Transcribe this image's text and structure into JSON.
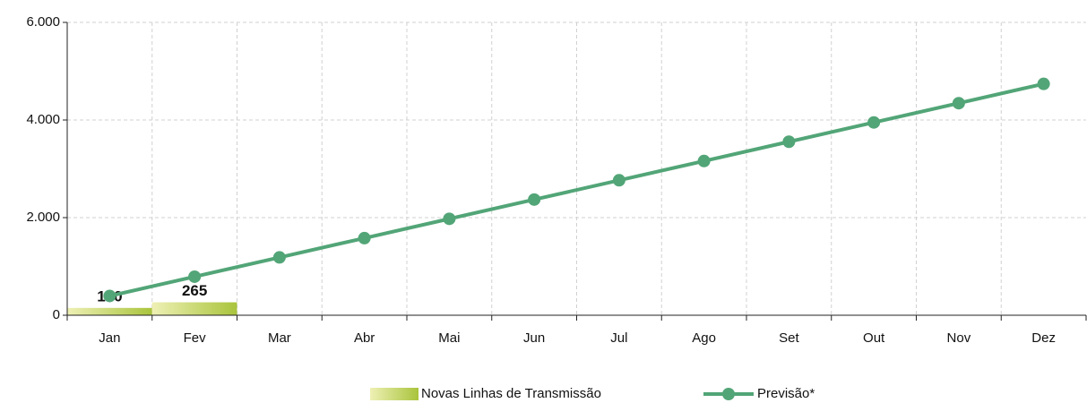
{
  "chart_data": {
    "type": "bar-line",
    "categories": [
      "Jan",
      "Fev",
      "Mar",
      "Abr",
      "Mai",
      "Jun",
      "Jul",
      "Ago",
      "Set",
      "Out",
      "Nov",
      "Dez"
    ],
    "series": [
      {
        "name": "Novas Linhas de Transmissão",
        "type": "bar",
        "color": "#a9c43c",
        "values": [
          150,
          265,
          null,
          null,
          null,
          null,
          null,
          null,
          null,
          null,
          null,
          null
        ]
      },
      {
        "name": "Previsão*",
        "type": "line",
        "color": "#52a577",
        "values": [
          395,
          790,
          1185,
          1580,
          1975,
          2370,
          2765,
          3160,
          3555,
          3950,
          4345,
          4740
        ]
      }
    ],
    "ylim": [
      0,
      6000
    ],
    "yticks": [
      0,
      {
        "value": 2000,
        "label": "2.000"
      },
      {
        "value": 4000,
        "label": "4.000"
      },
      {
        "value": 6000,
        "label": "6.000"
      }
    ],
    "grid": true,
    "legend": "bottom"
  }
}
